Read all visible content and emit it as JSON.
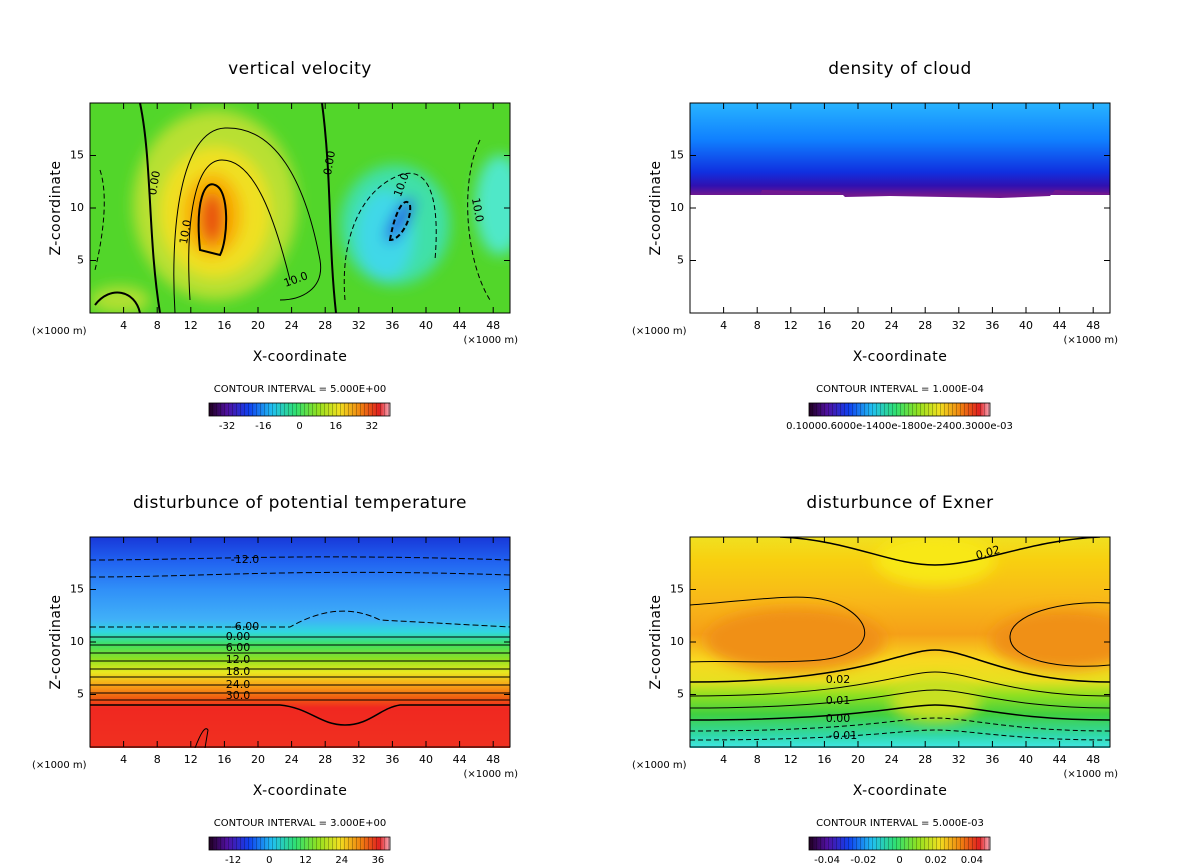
{
  "chart_data": [
    {
      "type": "contour",
      "title": "vertical velocity",
      "xlabel": "X-coordinate",
      "ylabel": "Z-coordinate",
      "xunit": "(×1000 m)",
      "yunit": "(×1000 m)",
      "xlim": [
        0,
        50
      ],
      "ylim": [
        0,
        20
      ],
      "xticks": [
        4,
        8,
        12,
        16,
        20,
        24,
        28,
        32,
        36,
        40,
        44,
        48
      ],
      "yticks": [
        5,
        10,
        15
      ],
      "contour_interval": "CONTOUR INTERVAL = 5.000E+00",
      "colorbar_lim": [
        -40,
        40
      ],
      "colorbar_ticks": [
        -32,
        -16,
        0,
        16,
        32
      ],
      "contour_labels": [
        {
          "value": 0,
          "label": "0.00"
        },
        {
          "value": 10,
          "label": "10.0"
        },
        {
          "value": 0,
          "label": "0.00"
        },
        {
          "value": 10,
          "label": "10.0"
        },
        {
          "value": 10,
          "label": "10.0"
        },
        {
          "value": 10,
          "label": "10.0"
        }
      ]
    },
    {
      "type": "contour",
      "title": "density of cloud",
      "xlabel": "X-coordinate",
      "ylabel": "Z-coordinate",
      "xunit": "(×1000 m)",
      "yunit": "(×1000 m)",
      "xlim": [
        0,
        50
      ],
      "ylim": [
        0,
        20
      ],
      "xticks": [
        4,
        8,
        12,
        16,
        20,
        24,
        28,
        32,
        36,
        40,
        44,
        48
      ],
      "yticks": [
        5,
        10,
        15
      ],
      "contour_interval": "CONTOUR INTERVAL = 1.000E-04",
      "colorbar_tick_text": "0.10000.6000e-1400e-1800e-2400.3000e-03"
    },
    {
      "type": "contour",
      "title": "disturbunce of potential temperature",
      "xlabel": "X-coordinate",
      "ylabel": "Z-coordinate",
      "xunit": "(×1000 m)",
      "yunit": "(×1000 m)",
      "xlim": [
        0,
        50
      ],
      "ylim": [
        0,
        20
      ],
      "xticks": [
        4,
        8,
        12,
        16,
        20,
        24,
        28,
        32,
        36,
        40,
        44,
        48
      ],
      "yticks": [
        5,
        10,
        15
      ],
      "contour_interval": "CONTOUR INTERVAL = 3.000E+00",
      "colorbar_lim": [
        -20,
        40
      ],
      "colorbar_ticks": [
        -12,
        0,
        12,
        24,
        36
      ],
      "contour_labels": [
        {
          "value": -12,
          "label": "-12.0"
        },
        {
          "value": -6,
          "label": "-6.00"
        },
        {
          "value": 0,
          "label": "0.00"
        },
        {
          "value": 6,
          "label": "6.00"
        },
        {
          "value": 12,
          "label": "12.0"
        },
        {
          "value": 18,
          "label": "18.0"
        },
        {
          "value": 24,
          "label": "24.0"
        },
        {
          "value": 30,
          "label": "30.0"
        }
      ]
    },
    {
      "type": "contour",
      "title": "disturbunce of Exner",
      "xlabel": "X-coordinate",
      "ylabel": "Z-coordinate",
      "xunit": "(×1000 m)",
      "yunit": "(×1000 m)",
      "xlim": [
        0,
        50
      ],
      "ylim": [
        0,
        20
      ],
      "xticks": [
        4,
        8,
        12,
        16,
        20,
        24,
        28,
        32,
        36,
        40,
        44,
        48
      ],
      "yticks": [
        5,
        10,
        15
      ],
      "contour_interval": "CONTOUR INTERVAL = 5.000E-03",
      "colorbar_lim": [
        -0.05,
        0.05
      ],
      "colorbar_ticks": [
        -0.04,
        -0.02,
        0,
        0.02,
        0.04
      ],
      "contour_labels": [
        0.02,
        0.02,
        0.01,
        {
          "value": 0,
          "label": "0.00"
        },
        -0.01
      ]
    }
  ]
}
